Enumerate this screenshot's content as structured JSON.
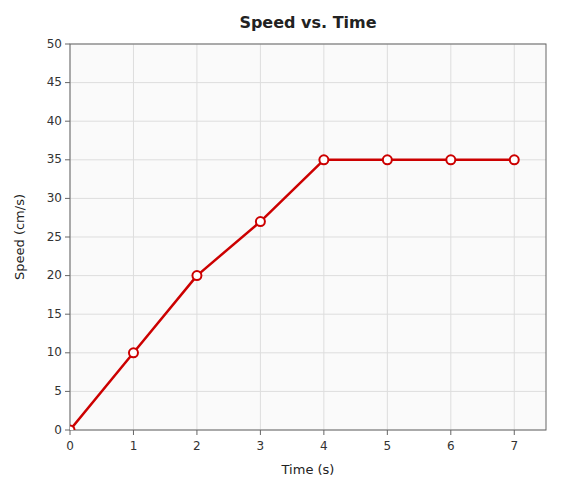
{
  "chart_data": {
    "type": "line",
    "title": "Speed vs. Time",
    "xlabel": "Time (s)",
    "ylabel": "Speed (cm/s)",
    "x": [
      0,
      1,
      2,
      3,
      4,
      5,
      6,
      7
    ],
    "values": [
      0,
      10,
      20,
      27,
      35,
      35,
      35,
      35
    ],
    "color": "#cc0000",
    "marker": "circle",
    "xlim": [
      0,
      7.5
    ],
    "ylim": [
      0,
      50
    ],
    "xticks": [
      0,
      1,
      2,
      3,
      4,
      5,
      6,
      7
    ],
    "yticks": [
      0,
      5,
      10,
      15,
      20,
      25,
      30,
      35,
      40,
      45,
      50
    ],
    "grid": true
  }
}
